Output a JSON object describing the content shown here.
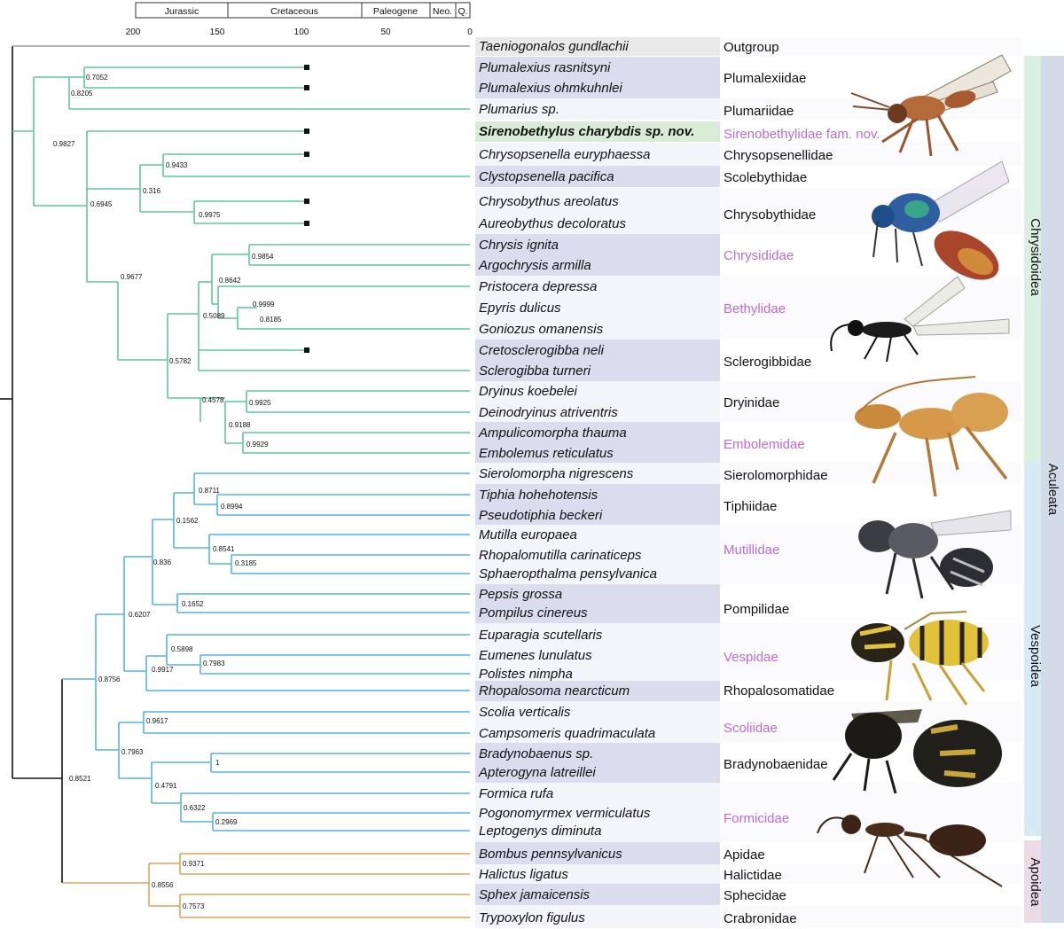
{
  "timescale": {
    "periods": [
      "Jurassic",
      "Cretaceous",
      "Paleogene",
      "Neo.",
      "Q."
    ],
    "ticks": [
      "200",
      "150",
      "100",
      "50",
      "0"
    ]
  },
  "colors": {
    "outgroup": "#9a9a9a",
    "chrysidoidea": "#5ec89a",
    "vespoidea": "#56b4e0",
    "apoidea": "#e0a45a",
    "root": "#111111",
    "family_highlight": "#c06ad8",
    "band_light": "#f4f5fb",
    "band_dark": "#dcdcef",
    "band_gray": "#e9e9e9",
    "band_green": "#d9ecd6"
  },
  "taxa": [
    "Taeniogonalos gundlachii",
    "Plumalexius rasnitsyni",
    "Plumalexius ohmkuhnlei",
    "Plumarius sp.",
    "Sirenobethylus charybdis sp. nov.",
    "Chrysopsenella euryphaessa",
    "Clystopsenella pacifica",
    "Chrysobythus areolatus",
    "Aureobythus decoloratus",
    "Chrysis ignita",
    "Argochrysis armilla",
    "Pristocera depressa",
    "Epyris dulicus",
    "Goniozus omanensis",
    "Cretosclerogibba neli",
    "Sclerogibba turneri",
    "Dryinus koebelei",
    "Deinodryinus atriventris",
    "Ampulicomorpha thauma",
    "Embolemus reticulatus",
    "Sierolomorpha nigrescens",
    "Tiphia hohehotensis",
    "Pseudotiphia beckeri",
    "Mutilla europaea",
    "Rhopalomutilla carinaticeps",
    "Sphaeropthalma pensylvanica",
    "Pepsis grossa",
    "Pompilus cinereus",
    "Euparagia scutellaris",
    "Eumenes lunulatus",
    "Polistes nimpha",
    "Rhopalosoma nearcticum",
    "Scolia verticalis",
    "Campsomeris quadrimaculata",
    "Bradynobaenus sp.",
    "Apterogyna latreillei",
    "Formica rufa",
    "Pogonomyrmex vermiculatus",
    "Leptogenys diminuta",
    "Bombus pennsylvanicus",
    "Halictus ligatus",
    "Sphex jamaicensis",
    "Trypoxylon figulus"
  ],
  "families": [
    "Outgroup",
    "Plumalexiidae",
    "Plumariidae",
    "Sirenobethylidae fam. nov.",
    "Chrysopsenellidae",
    "Scolebythidae",
    "Chrysobythidae",
    "Chrysididae",
    "Bethylidae",
    "Sclerogibbidae",
    "Dryinidae",
    "Embolemidae",
    "Sierolomorphidae",
    "Tiphiidae",
    "Mutillidae",
    "Pompilidae",
    "Vespidae",
    "Rhopalosomatidae",
    "Scoliidae",
    "Bradynobaenidae",
    "Formicidae",
    "Apidae",
    "Halictidae",
    "Sphecidae",
    "Crabronidae"
  ],
  "supports": [
    "0.7052",
    "0.8205",
    "0.9827",
    "0.9433",
    "0.316",
    "0.9975",
    "0.6945",
    "0.9854",
    "0.8642",
    "0.9999",
    "0.8185",
    "0.5089",
    "0.9677",
    "0.5782",
    "0.4578",
    "0.9925",
    "0.9188",
    "0.9929",
    "0.8711",
    "0.8994",
    "0.1562",
    "0.8541",
    "0.3185",
    "0.836",
    "0.1652",
    "0.6207",
    "0.5898",
    "0.7983",
    "0.9917",
    "0.8756",
    "0.9617",
    "0.7963",
    "1",
    "0.4791",
    "0.6322",
    "0.2969",
    "0.8521",
    "0.9371",
    "0.8556",
    "0.7573"
  ],
  "clades": {
    "chrysidoidea": "Chrysidoidea",
    "aculeata": "Aculeata",
    "vespoidea": "Vespoidea",
    "apoidea": "Apoidea"
  },
  "photos": [
    "plumalexiidae-wasp-photo",
    "chrysidid-wasp-photo",
    "bethylid-wasp-photo",
    "embolemid-wasp-photo",
    "mutillid-wasp-photo",
    "vespid-wasp-photo",
    "scoliid-wasp-photo",
    "ant-photo"
  ]
}
